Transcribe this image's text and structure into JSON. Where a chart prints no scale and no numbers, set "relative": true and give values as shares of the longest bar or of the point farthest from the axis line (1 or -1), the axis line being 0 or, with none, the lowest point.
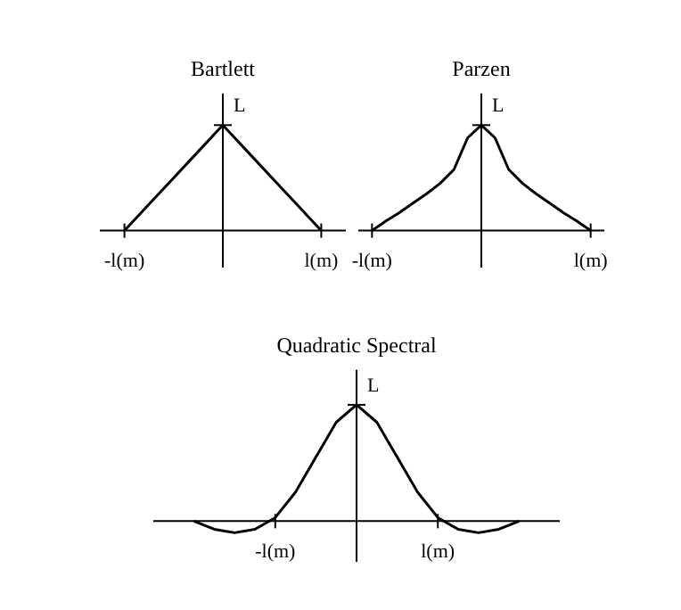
{
  "chart_data": [
    {
      "type": "line",
      "title": "Bartlett",
      "categories": [
        null,
        "-l(m)",
        null,
        null,
        null,
        null,
        null,
        null,
        null,
        "l(m)",
        null
      ],
      "values": [
        null,
        0,
        0.25,
        0.5,
        0.75,
        1,
        0.75,
        0.5,
        0.25,
        0,
        null
      ],
      "color": "#000000",
      "relative": true,
      "annotations": [
        "L"
      ]
    },
    {
      "type": "line",
      "title": "Parzen",
      "categories": [
        null,
        "-l(m)",
        null,
        null,
        null,
        null,
        null,
        null,
        null,
        null,
        null,
        null,
        null,
        null,
        null,
        null,
        null,
        "l(m)",
        null
      ],
      "values": [
        null,
        0,
        0.09,
        0.17,
        0.26,
        0.35,
        0.45,
        0.58,
        0.88,
        1,
        0.88,
        0.58,
        0.45,
        0.35,
        0.26,
        0.17,
        0.09,
        0,
        null
      ],
      "color": "#000000",
      "relative": true,
      "annotations": [
        "L"
      ]
    },
    {
      "type": "line",
      "title": "Quadratic Spectral",
      "categories": [
        null,
        null,
        null,
        null,
        null,
        null,
        "-l(m)",
        null,
        null,
        null,
        null,
        null,
        null,
        null,
        "l(m)",
        null,
        null,
        null,
        null,
        null,
        null
      ],
      "values": [
        null,
        null,
        0,
        -0.07,
        -0.1,
        -0.07,
        0.03,
        0.25,
        0.55,
        0.85,
        1,
        0.85,
        0.55,
        0.25,
        0.03,
        -0.07,
        -0.1,
        -0.07,
        0,
        null,
        null
      ],
      "color": "#000000",
      "relative": true,
      "annotations": [
        "L"
      ]
    }
  ]
}
